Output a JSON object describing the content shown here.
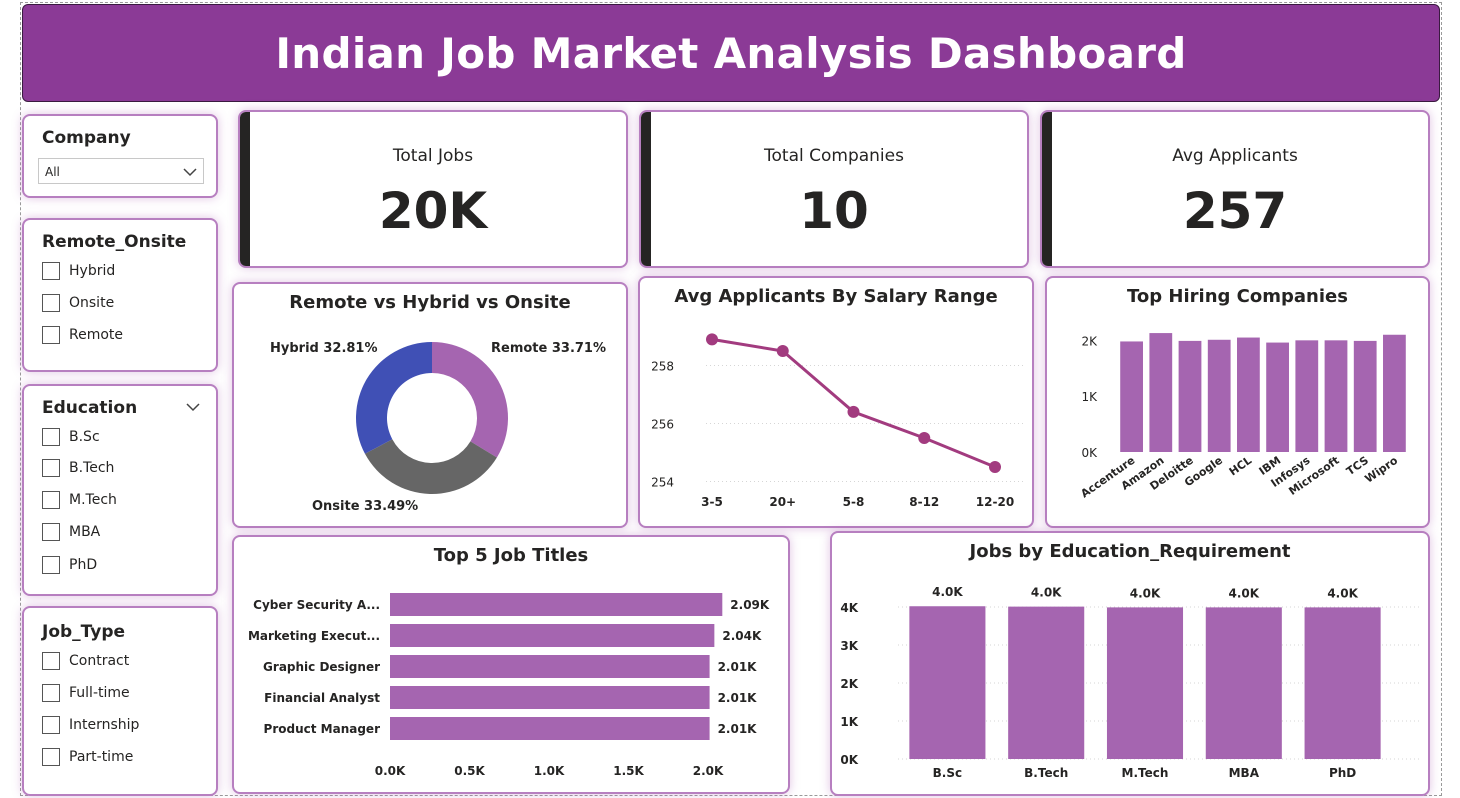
{
  "header": {
    "title": "Indian Job Market Analysis Dashboard"
  },
  "colors": {
    "purple": "#a565b0",
    "header": "#8b3a96",
    "blue": "#4050b5",
    "gray": "#666666",
    "line": "#a23b7f"
  },
  "slicers": {
    "company": {
      "title": "Company",
      "selected": "All"
    },
    "remote_onsite": {
      "title": "Remote_Onsite",
      "options": [
        "Hybrid",
        "Onsite",
        "Remote"
      ]
    },
    "education": {
      "title": "Education",
      "options": [
        "B.Sc",
        "B.Tech",
        "M.Tech",
        "MBA",
        "PhD"
      ]
    },
    "job_type": {
      "title": "Job_Type",
      "options": [
        "Contract",
        "Full-time",
        "Internship",
        "Part-time"
      ]
    }
  },
  "kpis": {
    "total_jobs": {
      "label": "Total Jobs",
      "value": "20K"
    },
    "total_companies": {
      "label": "Total Companies",
      "value": "10"
    },
    "avg_applicants": {
      "label": "Avg Applicants",
      "value": "257"
    }
  },
  "chart_data": [
    {
      "id": "donut",
      "type": "pie",
      "title": "Remote vs Hybrid vs Onsite",
      "slices": [
        {
          "name": "Remote",
          "value": 33.71,
          "label": "Remote 33.71%",
          "color": "#a565b0"
        },
        {
          "name": "Onsite",
          "value": 33.49,
          "label": "Onsite 33.49%",
          "color": "#666666"
        },
        {
          "name": "Hybrid",
          "value": 32.81,
          "label": "Hybrid 32.81%",
          "color": "#4050b5"
        }
      ]
    },
    {
      "id": "line",
      "type": "line",
      "title": "Avg Applicants By Salary Range",
      "categories": [
        "3-5",
        "20+",
        "5-8",
        "8-12",
        "12-20"
      ],
      "values": [
        258.9,
        258.5,
        256.4,
        255.5,
        254.5
      ],
      "yticks": [
        "254",
        "256",
        "258"
      ],
      "ylim": [
        253.5,
        259.5
      ],
      "color": "#a23b7f"
    },
    {
      "id": "companies",
      "type": "bar",
      "title": "Top Hiring Companies",
      "categories": [
        "Accenture",
        "Amazon",
        "Deloitte",
        "Google",
        "HCL",
        "IBM",
        "Infosys",
        "Microsoft",
        "TCS",
        "Wipro"
      ],
      "values": [
        1980,
        2130,
        1990,
        2010,
        2050,
        1960,
        2000,
        2000,
        1990,
        2100
      ],
      "yticks": [
        "0K",
        "1K",
        "2K"
      ],
      "ylim": [
        0,
        2400
      ],
      "color": "#a565b0"
    },
    {
      "id": "titles",
      "type": "bar",
      "orientation": "horizontal",
      "title": "Top 5 Job Titles",
      "categories": [
        "Cyber Security A...",
        "Marketing Execut...",
        "Graphic Designer",
        "Financial Analyst",
        "Product Manager"
      ],
      "values": [
        2090,
        2040,
        2010,
        2010,
        2010
      ],
      "value_labels": [
        "2.09K",
        "2.04K",
        "2.01K",
        "2.01K",
        "2.01K"
      ],
      "xticks": [
        "0.0K",
        "0.5K",
        "1.0K",
        "1.5K",
        "2.0K"
      ],
      "xlim": [
        0,
        2000
      ],
      "color": "#a565b0"
    },
    {
      "id": "education",
      "type": "bar",
      "title": "Jobs by Education_Requirement",
      "categories": [
        "B.Sc",
        "B.Tech",
        "M.Tech",
        "MBA",
        "PhD"
      ],
      "values": [
        4020,
        4010,
        3990,
        3990,
        3990
      ],
      "value_labels": [
        "4.0K",
        "4.0K",
        "4.0K",
        "4.0K",
        "4.0K"
      ],
      "yticks": [
        "0K",
        "1K",
        "2K",
        "3K",
        "4K"
      ],
      "ylim": [
        0,
        4000
      ],
      "color": "#a565b0"
    }
  ]
}
